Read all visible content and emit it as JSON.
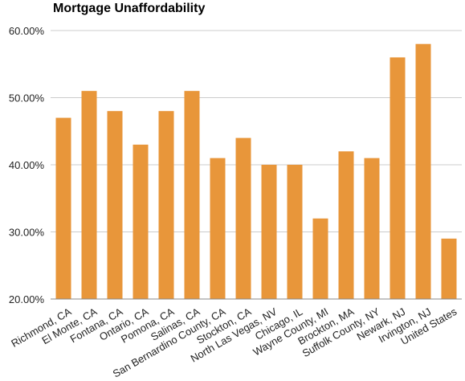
{
  "chart_data": {
    "type": "bar",
    "title": "Mortgage Unaffordability",
    "xlabel": "",
    "ylabel": "",
    "categories": [
      "Richmond, CA",
      "El Monte, CA",
      "Fontana, CA",
      "Ontario, CA",
      "Pomona, CA",
      "Salinas, CA",
      "San Bernardino County, CA",
      "Stockton, CA",
      "North Las Vegas, NV",
      "Chicago, IL",
      "Wayne County, MI",
      "Brockton, MA",
      "Suffolk County, NY",
      "Newark, NJ",
      "Irvington, NJ",
      "United States"
    ],
    "values": [
      47,
      51,
      48,
      43,
      48,
      51,
      41,
      44,
      40,
      40,
      32,
      42,
      41,
      56,
      58,
      29
    ],
    "ylim": [
      20,
      60
    ],
    "yticks": [
      {
        "value": 20,
        "label": "20.00%"
      },
      {
        "value": 30,
        "label": "30.00%"
      },
      {
        "value": 40,
        "label": "40.00%"
      },
      {
        "value": 50,
        "label": "50.00%"
      },
      {
        "value": 60,
        "label": "60.00%"
      }
    ],
    "grid": true,
    "legend": "none",
    "bar_color": "#e8963a"
  }
}
